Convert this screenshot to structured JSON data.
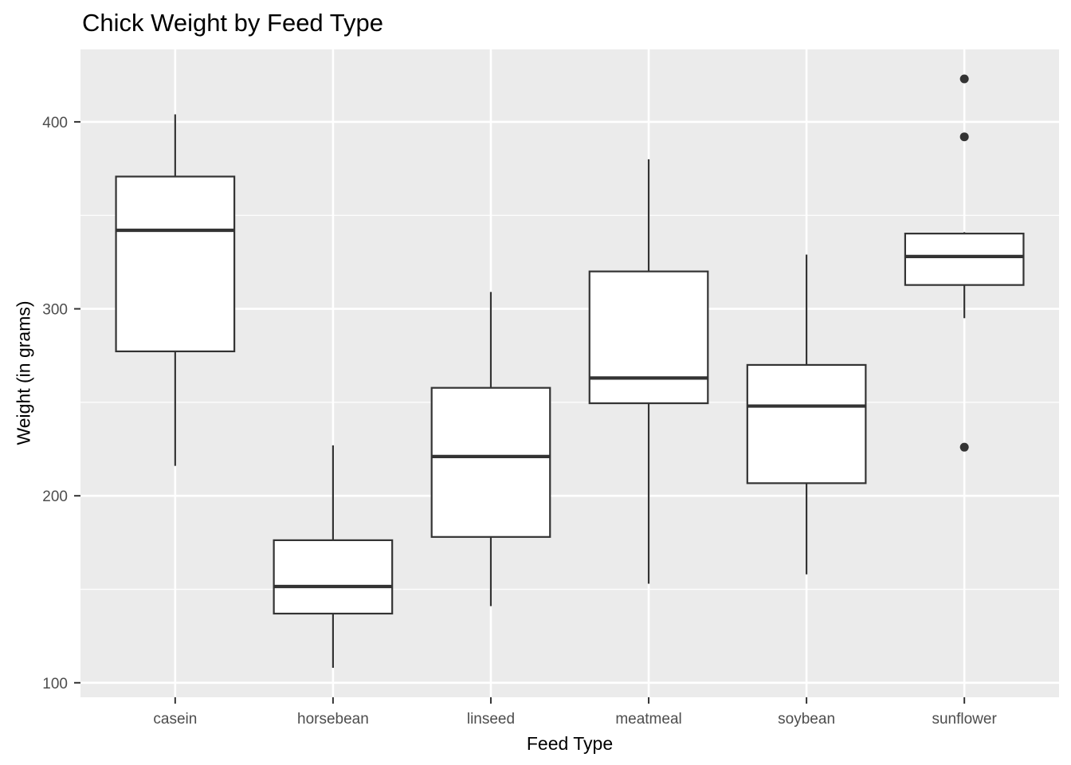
{
  "chart_data": {
    "type": "boxplot",
    "title": "Chick Weight by Feed Type",
    "xlabel": "Feed Type",
    "ylabel": "Weight (in grams)",
    "categories": [
      "casein",
      "horsebean",
      "linseed",
      "meatmeal",
      "soybean",
      "sunflower"
    ],
    "yticks": [
      100,
      200,
      300,
      400
    ],
    "minor_yticks": [
      150,
      250,
      350
    ],
    "ylim": [
      92.25,
      438.75
    ],
    "grid": {
      "major": true,
      "minor": true,
      "vertical_at_categories": true
    },
    "legend": "none",
    "box_width_fraction": 0.75,
    "series": [
      {
        "category": "casein",
        "whisker_low": 216,
        "q1": 277.25,
        "median": 342,
        "q3": 370.75,
        "whisker_high": 404,
        "outliers": []
      },
      {
        "category": "horsebean",
        "whisker_low": 108,
        "q1": 137,
        "median": 151.5,
        "q3": 176.25,
        "whisker_high": 227,
        "outliers": []
      },
      {
        "category": "linseed",
        "whisker_low": 141,
        "q1": 178,
        "median": 221,
        "q3": 257.75,
        "whisker_high": 309,
        "outliers": []
      },
      {
        "category": "meatmeal",
        "whisker_low": 153,
        "q1": 249.5,
        "median": 263,
        "q3": 320,
        "whisker_high": 380,
        "outliers": []
      },
      {
        "category": "soybean",
        "whisker_low": 158,
        "q1": 206.75,
        "median": 248,
        "q3": 270,
        "whisker_high": 329,
        "outliers": []
      },
      {
        "category": "sunflower",
        "whisker_low": 295,
        "q1": 312.75,
        "median": 328,
        "q3": 340.25,
        "whisker_high": 341,
        "outliers": [
          423,
          392,
          226
        ]
      }
    ],
    "colors": {
      "panel_background": "#EBEBEB",
      "grid_major": "#FFFFFF",
      "grid_minor": "#FFFFFF",
      "box_stroke": "#333333",
      "box_fill": "#FFFFFF",
      "median": "#333333",
      "outlier": "#333333",
      "tick_mark": "#333333",
      "tick_label": "#4D4D4D",
      "axis_title": "#000000",
      "title": "#000000"
    }
  }
}
